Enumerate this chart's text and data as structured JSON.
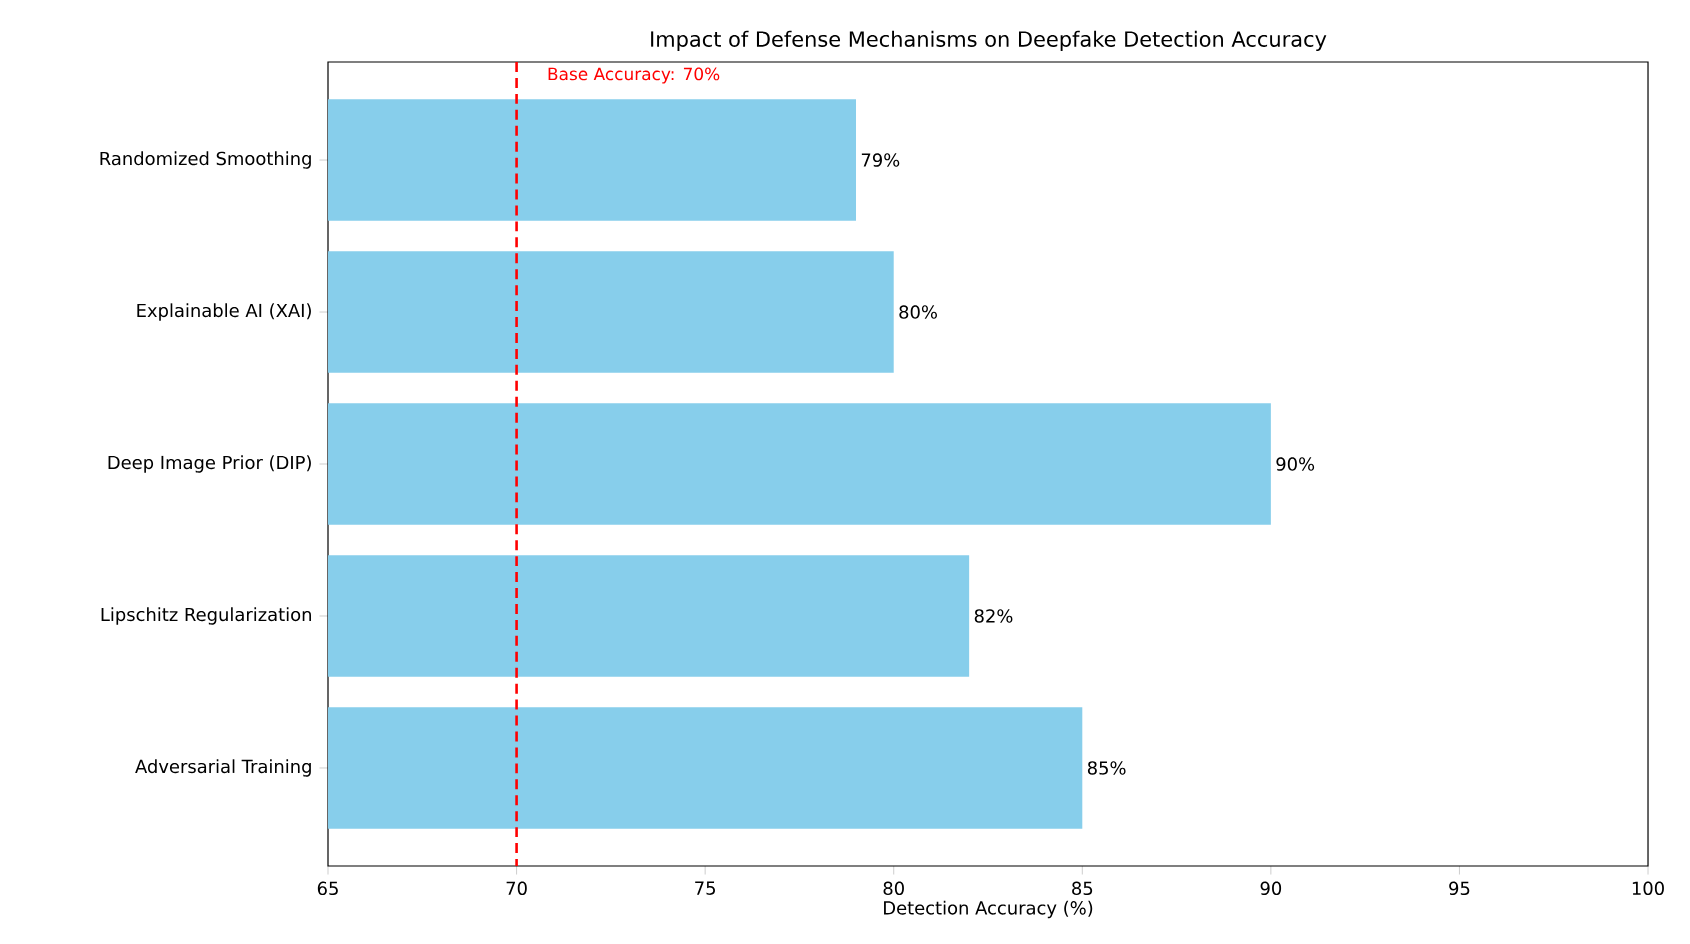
{
  "chart_data": {
    "type": "bar",
    "orientation": "horizontal",
    "title": "Impact of Defense Mechanisms on Deepfake Detection Accuracy",
    "xlabel": "Detection Accuracy (%)",
    "categories": [
      "Randomized Smoothing",
      "Explainable AI (XAI)",
      "Deep Image Prior (DIP)",
      "Lipschitz Regularization",
      "Adversarial Training"
    ],
    "values": [
      79,
      80,
      90,
      82,
      85
    ],
    "value_labels": [
      "79%",
      "80%",
      "90%",
      "82%",
      "85%"
    ],
    "color": "#87ceeb",
    "xlim": [
      65,
      100
    ],
    "xticks": [
      65,
      70,
      75,
      80,
      85,
      90,
      95,
      100
    ],
    "ref_lines": [
      {
        "axis": "x",
        "value": 70,
        "label": "Base Accuracy: 70%",
        "color": "#ff0000",
        "line_style": "dashed"
      }
    ]
  }
}
